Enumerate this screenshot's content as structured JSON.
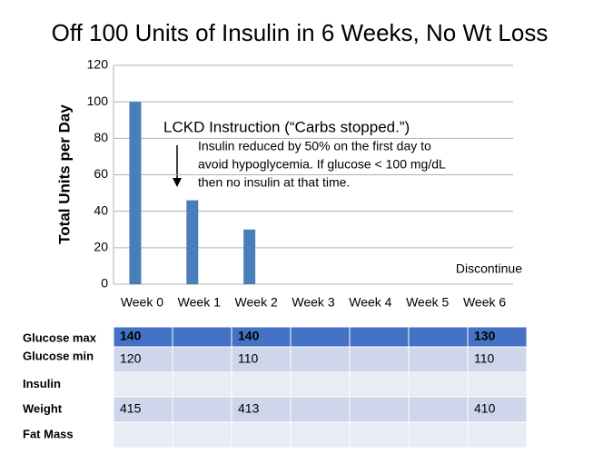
{
  "chart_data": {
    "type": "bar",
    "title": "Off 100 Units of Insulin in 6 Weeks, No Wt Loss",
    "y_label": "Total Units per Day",
    "categories": [
      "Week 0",
      "Week 1",
      "Week 2",
      "Week 3",
      "Week 4",
      "Week 5",
      "Week 6"
    ],
    "values": [
      100,
      46,
      30,
      0,
      0,
      0,
      0
    ],
    "color": "#4a7ebb",
    "ylim": [
      0,
      120
    ],
    "yticks": [
      0,
      20,
      40,
      60,
      80,
      100,
      120
    ],
    "grid": true,
    "annotation_title": "LCKD Instruction (“Carbs stopped.”)",
    "annotation_lines": [
      "Insulin reduced by 50% on the first day to",
      "avoid hypoglycemia. If glucose < 100 mg/dL",
      "then no insulin at that time."
    ],
    "end_note": "Discontinue"
  },
  "table": {
    "row_labels": [
      "Glucose max",
      "Glucose min",
      "Insulin",
      "Weight",
      "Fat Mass"
    ],
    "rows": [
      [
        140,
        null,
        140,
        null,
        null,
        null,
        130
      ],
      [
        120,
        null,
        110,
        null,
        null,
        null,
        110
      ],
      [
        null,
        null,
        null,
        null,
        null,
        null,
        null
      ],
      [
        415,
        null,
        413,
        null,
        null,
        null,
        410
      ],
      [
        null,
        null,
        null,
        null,
        null,
        null,
        null
      ]
    ]
  }
}
